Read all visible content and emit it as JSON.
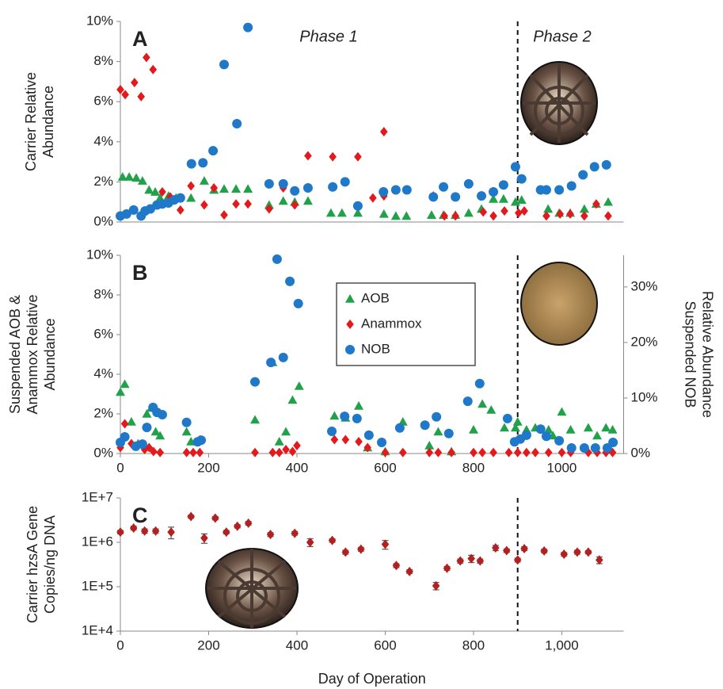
{
  "chart_data": [
    {
      "type": "scatter",
      "panel_label": "A",
      "annotations": [
        "Phase 1",
        "Phase 2"
      ],
      "ylabel": [
        "Carrier Relative",
        "Abundance"
      ],
      "xlim": [
        0,
        1140
      ],
      "ylim": [
        0,
        10
      ],
      "yticks": [
        {
          "value": 0,
          "label": "0%"
        },
        {
          "value": 2,
          "label": "2%"
        },
        {
          "value": 4,
          "label": "4%"
        },
        {
          "value": 6,
          "label": "6%"
        },
        {
          "value": 8,
          "label": "8%"
        },
        {
          "value": 10,
          "label": "10%"
        }
      ],
      "vline": 900,
      "series": [
        {
          "name": "AOB",
          "color": "#21a24a",
          "marker": "triangle",
          "x": [
            5,
            20,
            36,
            50,
            65,
            79,
            90,
            109,
            126,
            160,
            190,
            212,
            235,
            262,
            289,
            337,
            369,
            395,
            425,
            477,
            502,
            538,
            597,
            624,
            648,
            705,
            732,
            759,
            789,
            818,
            845,
            868,
            895,
            909,
            969,
            994,
            1019,
            1051,
            1078,
            1105
          ],
          "values": [
            2.25,
            2.25,
            2.2,
            2.05,
            1.6,
            1.5,
            1.2,
            1.3,
            1.2,
            1.2,
            2.05,
            1.6,
            1.65,
            1.65,
            1.65,
            0.85,
            1.05,
            1.0,
            1.05,
            0.45,
            0.45,
            0.45,
            0.4,
            0.3,
            0.3,
            0.35,
            0.35,
            0.35,
            0.45,
            0.65,
            1.15,
            1.15,
            1.0,
            1.1,
            0.65,
            0.45,
            0.45,
            0.65,
            0.9,
            1.0
          ]
        },
        {
          "name": "Anammox",
          "color": "#e3191c",
          "marker": "diamond",
          "x": [
            0,
            11,
            32,
            47,
            59,
            74,
            95,
            113,
            136,
            160,
            190,
            212,
            235,
            262,
            289,
            337,
            369,
            395,
            425,
            481,
            509,
            538,
            572,
            597,
            597,
            709,
            734,
            759,
            822,
            845,
            870,
            902,
            915,
            965,
            996,
            1019,
            1051,
            1078,
            1105
          ],
          "values": [
            6.6,
            6.35,
            6.95,
            6.25,
            8.2,
            7.6,
            1.5,
            1.25,
            0.6,
            1.8,
            0.85,
            1.7,
            0.35,
            0.9,
            0.9,
            0.65,
            1.7,
            0.85,
            3.3,
            3.25,
            2.0,
            3.25,
            1.2,
            1.3,
            4.5,
            1.3,
            0.3,
            0.3,
            0.5,
            0.3,
            0.55,
            0.45,
            0.55,
            0.3,
            0.4,
            0.4,
            0.3,
            0.9,
            0.3
          ]
        },
        {
          "name": "NOB",
          "color": "#1f78c8",
          "marker": "circle",
          "x": [
            0,
            14,
            30,
            47,
            56,
            68,
            83,
            95,
            109,
            122,
            136,
            161,
            187,
            210,
            235,
            264,
            289,
            337,
            369,
            395,
            425,
            481,
            509,
            538,
            596,
            624,
            649,
            709,
            732,
            759,
            789,
            818,
            845,
            868,
            895,
            909,
            952,
            965,
            994,
            1022,
            1048,
            1074,
            1101
          ],
          "values": [
            0.3,
            0.4,
            0.6,
            0.3,
            0.55,
            0.65,
            0.85,
            0.9,
            0.95,
            1.1,
            1.2,
            2.9,
            2.95,
            3.55,
            7.85,
            4.9,
            9.7,
            1.9,
            1.9,
            1.55,
            1.7,
            1.75,
            2.0,
            0.8,
            1.5,
            1.6,
            1.6,
            1.25,
            1.75,
            1.25,
            1.9,
            1.3,
            1.5,
            1.85,
            2.75,
            2.15,
            1.6,
            1.6,
            1.6,
            1.8,
            2.35,
            2.75,
            2.85
          ]
        }
      ]
    },
    {
      "type": "scatter",
      "panel_label": "B",
      "ylabel": [
        "Suspended AOB &",
        "Anammox Relative",
        "Abundance"
      ],
      "y2label": [
        "Suspended NOB",
        "Relative Abundance"
      ],
      "xlim": [
        0,
        1140
      ],
      "ylim": [
        0,
        10
      ],
      "y2lim": [
        0,
        35.7
      ],
      "xticks": [
        0,
        200,
        400,
        600,
        800,
        1000
      ],
      "yticks": [
        {
          "value": 0,
          "label": "0%"
        },
        {
          "value": 2,
          "label": "2%"
        },
        {
          "value": 4,
          "label": "4%"
        },
        {
          "value": 6,
          "label": "6%"
        },
        {
          "value": 8,
          "label": "8%"
        },
        {
          "value": 10,
          "label": "10%"
        }
      ],
      "y2ticks": [
        {
          "value": 0,
          "label": "0%"
        },
        {
          "value": 10,
          "label": "10%"
        },
        {
          "value": 20,
          "label": "20%"
        },
        {
          "value": 30,
          "label": "30%"
        }
      ],
      "vline": 900,
      "legend": "center",
      "series": [
        {
          "name": "AOB",
          "color": "#21a24a",
          "marker": "triangle",
          "x": [
            0,
            10,
            25,
            40,
            60,
            70,
            80,
            90,
            150,
            160,
            180,
            305,
            345,
            360,
            375,
            390,
            405,
            485,
            510,
            540,
            560,
            600,
            640,
            700,
            720,
            750,
            800,
            820,
            840,
            870,
            895,
            900,
            920,
            940,
            970,
            980,
            1000,
            1020,
            1060,
            1080,
            1100,
            1115
          ],
          "values": [
            3.1,
            3.5,
            1.6,
            0.5,
            2.0,
            2.3,
            1.1,
            0.9,
            1.1,
            0.6,
            0.7,
            1.7,
            4.6,
            0.6,
            1.1,
            2.7,
            3.4,
            1.9,
            1.8,
            2.4,
            0.3,
            0.1,
            1.6,
            0.4,
            1.1,
            0.1,
            1.2,
            2.5,
            2.2,
            1.3,
            1.3,
            1.6,
            1.2,
            1.3,
            1.2,
            0.9,
            2.1,
            1.2,
            1.3,
            0.9,
            1.3,
            1.2
          ]
        },
        {
          "name": "Anammox",
          "color": "#e3191c",
          "marker": "diamond",
          "x": [
            0,
            10,
            25,
            40,
            55,
            65,
            75,
            90,
            150,
            165,
            180,
            305,
            345,
            360,
            375,
            390,
            400,
            485,
            510,
            540,
            560,
            600,
            640,
            700,
            720,
            750,
            800,
            820,
            845,
            880,
            900,
            920,
            940,
            970,
            1000,
            1020,
            1060,
            1080,
            1100,
            1115
          ],
          "values": [
            0.3,
            1.5,
            0.5,
            0.4,
            0.2,
            0.3,
            0.1,
            0.05,
            0.05,
            0.05,
            0.05,
            0.05,
            0.05,
            0.05,
            0.2,
            0.1,
            0.4,
            0.7,
            0.7,
            0.6,
            0.3,
            0.05,
            0.05,
            0.05,
            0.05,
            0.05,
            0.05,
            0.05,
            0.05,
            0.05,
            0.05,
            0.05,
            0.05,
            0.05,
            0.05,
            0.05,
            0.05,
            0.05,
            0.05,
            0.05
          ]
        },
        {
          "name": "NOB",
          "color": "#1f78c8",
          "marker": "circle",
          "axis": "y2",
          "x": [
            0,
            10,
            35,
            50,
            60,
            74,
            83,
            95,
            150,
            175,
            183,
            305,
            341,
            355,
            369,
            384,
            403,
            479,
            508,
            536,
            563,
            592,
            633,
            690,
            716,
            744,
            787,
            814,
            877,
            893,
            906,
            920,
            952,
            965,
            994,
            1022,
            1051,
            1076,
            1103,
            1116
          ],
          "values": [
            2.0,
            3.0,
            1.3,
            1.7,
            4.7,
            8.3,
            7.4,
            7.0,
            5.6,
            2.1,
            2.4,
            12.9,
            16.4,
            35.0,
            17.3,
            31.0,
            27.0,
            4.0,
            6.7,
            6.3,
            3.3,
            2.0,
            4.6,
            5.1,
            6.6,
            3.6,
            9.4,
            12.6,
            6.3,
            2.1,
            2.6,
            3.3,
            4.4,
            3.1,
            2.3,
            1.0,
            1.0,
            1.0,
            1.0,
            2.0
          ]
        }
      ]
    },
    {
      "type": "scatter",
      "panel_label": "C",
      "ylabel": [
        "Carrier hzsA Gene",
        "Copies/ng DNA"
      ],
      "xlabel": "Day of Operation",
      "xlim": [
        0,
        1140
      ],
      "ylim": [
        10000,
        10000000
      ],
      "yscale": "log",
      "xticks": [
        0,
        200,
        400,
        600,
        800,
        {
          "value": 1000,
          "label": "1,000"
        }
      ],
      "yticks": [
        {
          "value": 10000,
          "label": "1E+4"
        },
        {
          "value": 100000,
          "label": "1E+5"
        },
        {
          "value": 1000000,
          "label": "1E+6"
        },
        {
          "value": 10000000,
          "label": "1E+7"
        }
      ],
      "vline": 900,
      "series": [
        {
          "name": "hzsA",
          "color": "#b3201f",
          "marker": "diamond",
          "x": [
            0,
            30,
            55,
            80,
            115,
            160,
            190,
            215,
            240,
            265,
            290,
            340,
            395,
            430,
            480,
            510,
            545,
            600,
            625,
            655,
            715,
            740,
            770,
            795,
            815,
            850,
            875,
            900,
            915,
            960,
            1005,
            1035,
            1060,
            1085
          ],
          "values": [
            1700000,
            2100000,
            1800000,
            1800000,
            1700000,
            3800000,
            1250000,
            3500000,
            1700000,
            2300000,
            2700000,
            1500000,
            1600000,
            1000000,
            1100000,
            600000,
            700000,
            900000,
            300000,
            220000,
            105000,
            260000,
            380000,
            430000,
            380000,
            750000,
            650000,
            400000,
            720000,
            640000,
            540000,
            600000,
            600000,
            400000
          ],
          "errors": [
            150000,
            200000,
            200000,
            200000,
            500000,
            300000,
            300000,
            300000,
            150000,
            200000,
            250000,
            150000,
            150000,
            200000,
            100000,
            60000,
            70000,
            200000,
            30000,
            20000,
            20000,
            25000,
            40000,
            80000,
            40000,
            100000,
            60000,
            40000,
            70000,
            60000,
            50000,
            60000,
            50000,
            70000
          ]
        }
      ]
    }
  ]
}
